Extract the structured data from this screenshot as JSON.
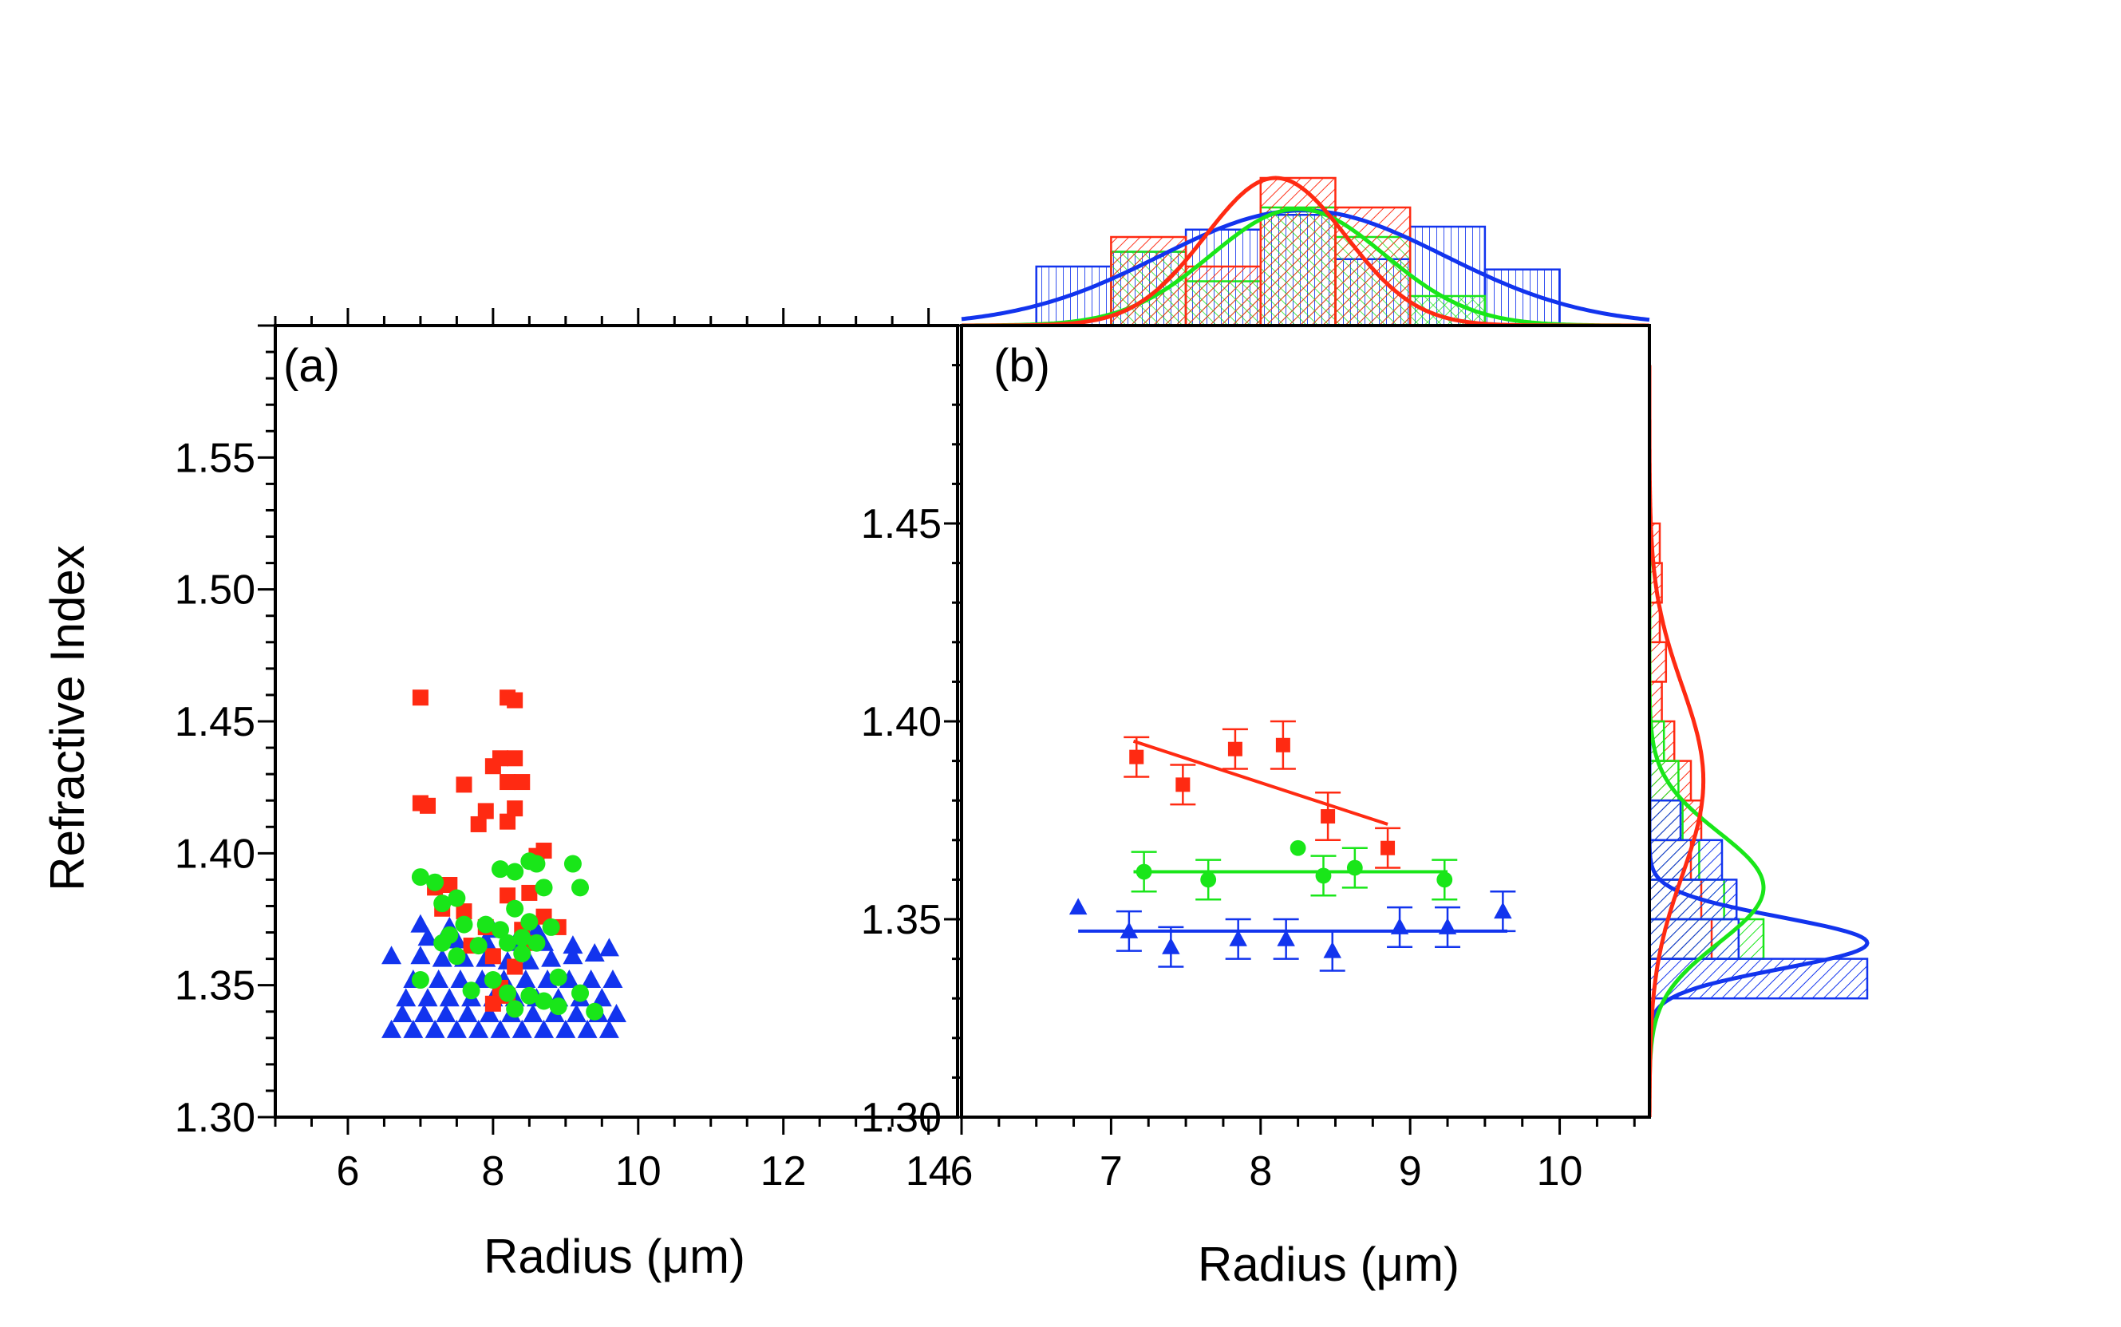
{
  "colors": {
    "red": "#ff2a12",
    "green": "#19e619",
    "blue": "#1234ee",
    "axis": "#000000",
    "background": "#ffffff"
  },
  "chart_data": [
    {
      "type": "scatter",
      "panel_label": "(a)",
      "xlabel": "Radius (μm)",
      "ylabel": "Refractive Index",
      "xlim": [
        5,
        14.4
      ],
      "ylim": [
        1.3,
        1.6
      ],
      "xticks": [
        "6",
        "8",
        "10",
        "12",
        "14"
      ],
      "yticks": [
        "1.30",
        "1.35",
        "1.40",
        "1.45",
        "1.50",
        "1.55"
      ],
      "series": [
        {
          "name": "red",
          "marker": "square",
          "color": "#ff2a12",
          "points": [
            [
              7.0,
              1.459
            ],
            [
              8.2,
              1.459
            ],
            [
              8.3,
              1.458
            ],
            [
              7.0,
              1.419
            ],
            [
              7.1,
              1.418
            ],
            [
              7.6,
              1.426
            ],
            [
              8.1,
              1.436
            ],
            [
              8.3,
              1.436
            ],
            [
              8.0,
              1.433
            ],
            [
              8.2,
              1.427
            ],
            [
              8.4,
              1.427
            ],
            [
              7.9,
              1.416
            ],
            [
              8.3,
              1.417
            ],
            [
              7.8,
              1.411
            ],
            [
              8.2,
              1.412
            ],
            [
              8.7,
              1.401
            ],
            [
              8.6,
              1.399
            ],
            [
              7.2,
              1.387
            ],
            [
              7.4,
              1.388
            ],
            [
              7.3,
              1.379
            ],
            [
              7.6,
              1.378
            ],
            [
              8.2,
              1.384
            ],
            [
              8.5,
              1.385
            ],
            [
              7.9,
              1.372
            ],
            [
              8.4,
              1.371
            ],
            [
              8.7,
              1.376
            ],
            [
              8.0,
              1.361
            ],
            [
              8.3,
              1.357
            ],
            [
              8.1,
              1.349
            ],
            [
              8.0,
              1.343
            ],
            [
              8.2,
              1.346
            ],
            [
              7.7,
              1.365
            ],
            [
              8.5,
              1.366
            ],
            [
              8.9,
              1.372
            ]
          ]
        },
        {
          "name": "green",
          "marker": "circle",
          "color": "#19e619",
          "points": [
            [
              7.0,
              1.391
            ],
            [
              7.2,
              1.389
            ],
            [
              7.3,
              1.381
            ],
            [
              7.5,
              1.383
            ],
            [
              7.4,
              1.369
            ],
            [
              7.6,
              1.373
            ],
            [
              7.3,
              1.366
            ],
            [
              7.5,
              1.361
            ],
            [
              7.9,
              1.373
            ],
            [
              8.1,
              1.371
            ],
            [
              8.3,
              1.379
            ],
            [
              8.5,
              1.374
            ],
            [
              8.2,
              1.366
            ],
            [
              8.4,
              1.362
            ],
            [
              8.1,
              1.394
            ],
            [
              8.3,
              1.393
            ],
            [
              8.5,
              1.397
            ],
            [
              8.6,
              1.396
            ],
            [
              9.1,
              1.396
            ],
            [
              9.2,
              1.387
            ],
            [
              8.7,
              1.387
            ],
            [
              8.8,
              1.372
            ],
            [
              8.6,
              1.366
            ],
            [
              8.4,
              1.368
            ],
            [
              7.8,
              1.365
            ],
            [
              8.0,
              1.352
            ],
            [
              8.2,
              1.347
            ],
            [
              8.5,
              1.346
            ],
            [
              7.0,
              1.352
            ],
            [
              9.2,
              1.347
            ],
            [
              8.9,
              1.342
            ],
            [
              9.4,
              1.34
            ],
            [
              7.7,
              1.348
            ],
            [
              8.9,
              1.353
            ],
            [
              8.3,
              1.341
            ],
            [
              8.7,
              1.344
            ]
          ]
        },
        {
          "name": "blue",
          "marker": "triangle",
          "color": "#1234ee",
          "points": [
            [
              6.6,
              1.333
            ],
            [
              6.9,
              1.333
            ],
            [
              7.2,
              1.333
            ],
            [
              7.5,
              1.333
            ],
            [
              7.8,
              1.333
            ],
            [
              8.1,
              1.333
            ],
            [
              8.4,
              1.333
            ],
            [
              8.7,
              1.333
            ],
            [
              9.0,
              1.333
            ],
            [
              9.3,
              1.333
            ],
            [
              9.6,
              1.333
            ],
            [
              6.75,
              1.339
            ],
            [
              7.05,
              1.339
            ],
            [
              7.35,
              1.339
            ],
            [
              7.65,
              1.339
            ],
            [
              7.95,
              1.339
            ],
            [
              8.25,
              1.339
            ],
            [
              8.55,
              1.339
            ],
            [
              8.85,
              1.339
            ],
            [
              9.15,
              1.339
            ],
            [
              9.45,
              1.339
            ],
            [
              9.7,
              1.339
            ],
            [
              6.8,
              1.345
            ],
            [
              7.1,
              1.345
            ],
            [
              7.4,
              1.345
            ],
            [
              7.7,
              1.345
            ],
            [
              8.0,
              1.345
            ],
            [
              8.3,
              1.345
            ],
            [
              8.6,
              1.345
            ],
            [
              8.9,
              1.345
            ],
            [
              9.2,
              1.345
            ],
            [
              9.5,
              1.345
            ],
            [
              6.9,
              1.352
            ],
            [
              7.25,
              1.352
            ],
            [
              7.55,
              1.352
            ],
            [
              7.85,
              1.352
            ],
            [
              8.15,
              1.352
            ],
            [
              8.45,
              1.352
            ],
            [
              8.75,
              1.352
            ],
            [
              9.05,
              1.352
            ],
            [
              9.35,
              1.352
            ],
            [
              9.65,
              1.352
            ],
            [
              6.6,
              1.361
            ],
            [
              7.0,
              1.361
            ],
            [
              7.3,
              1.36
            ],
            [
              7.6,
              1.36
            ],
            [
              7.9,
              1.36
            ],
            [
              8.2,
              1.359
            ],
            [
              8.5,
              1.359
            ],
            [
              8.8,
              1.36
            ],
            [
              9.1,
              1.361
            ],
            [
              9.4,
              1.362
            ],
            [
              7.1,
              1.368
            ],
            [
              7.5,
              1.367
            ],
            [
              7.9,
              1.367
            ],
            [
              8.3,
              1.366
            ],
            [
              8.7,
              1.366
            ],
            [
              9.1,
              1.365
            ],
            [
              9.6,
              1.364
            ],
            [
              7.0,
              1.373
            ],
            [
              7.4,
              1.372
            ],
            [
              8.0,
              1.371
            ],
            [
              8.6,
              1.371
            ]
          ]
        }
      ]
    },
    {
      "type": "scatter",
      "panel_label": "(b)",
      "xlabel": "Radius (μm)",
      "xlim": [
        6,
        10.6
      ],
      "ylim": [
        1.3,
        1.5
      ],
      "xticks": [
        "6",
        "7",
        "8",
        "9",
        "10"
      ],
      "yticks": [
        "1.30",
        "1.35",
        "1.40",
        "1.45"
      ],
      "series": [
        {
          "name": "red",
          "marker": "square",
          "color": "#ff2a12",
          "points": [
            [
              7.17,
              1.391,
              0.005
            ],
            [
              7.48,
              1.384,
              0.005
            ],
            [
              7.83,
              1.393,
              0.005
            ],
            [
              8.15,
              1.394,
              0.006
            ],
            [
              8.45,
              1.376,
              0.006
            ],
            [
              8.85,
              1.368,
              0.005
            ]
          ],
          "fit": [
            [
              7.15,
              1.395
            ],
            [
              8.85,
              1.374
            ]
          ]
        },
        {
          "name": "green",
          "marker": "circle",
          "color": "#19e619",
          "points": [
            [
              7.22,
              1.362,
              0.005
            ],
            [
              7.65,
              1.36,
              0.005
            ],
            [
              8.25,
              1.368,
              0
            ],
            [
              8.42,
              1.361,
              0.005
            ],
            [
              8.63,
              1.363,
              0.005
            ],
            [
              9.23,
              1.36,
              0.005
            ]
          ],
          "fit": [
            [
              7.15,
              1.362
            ],
            [
              9.25,
              1.362
            ]
          ]
        },
        {
          "name": "blue",
          "marker": "triangle",
          "color": "#1234ee",
          "points": [
            [
              6.78,
              1.353,
              0
            ],
            [
              7.12,
              1.347,
              0.005
            ],
            [
              7.4,
              1.343,
              0.005
            ],
            [
              7.85,
              1.345,
              0.005
            ],
            [
              8.17,
              1.345,
              0.005
            ],
            [
              8.48,
              1.342,
              0.005
            ],
            [
              8.93,
              1.348,
              0.005
            ],
            [
              9.25,
              1.348,
              0.005
            ],
            [
              9.62,
              1.352,
              0.005
            ]
          ],
          "fit": [
            [
              6.78,
              1.347
            ],
            [
              9.65,
              1.347
            ]
          ]
        }
      ]
    },
    {
      "type": "histogram",
      "orientation": "vertical",
      "axis": "Radius (μm)",
      "bins": [
        6.5,
        7.0,
        7.5,
        8.0,
        8.5,
        9.0,
        9.5,
        10.0
      ],
      "series": [
        {
          "name": "red",
          "color": "#ff2a12",
          "hatch": "diagonal",
          "counts": [
            0,
            6,
            4,
            10,
            8,
            0,
            0
          ],
          "fit_mean": 8.1,
          "fit_sigma": 0.47,
          "fit_peak": 10
        },
        {
          "name": "green",
          "color": "#19e619",
          "hatch": "crosshatch",
          "counts": [
            0,
            5,
            3,
            8,
            6,
            2,
            0
          ],
          "fit_mean": 8.25,
          "fit_sigma": 0.58,
          "fit_peak": 7.9
        },
        {
          "name": "blue",
          "color": "#1234ee",
          "hatch": "vertical",
          "counts": [
            4,
            5,
            6.5,
            7.5,
            4.5,
            6.7,
            3.8
          ],
          "fit_mean": 8.28,
          "fit_sigma": 0.95,
          "fit_peak": 7.8
        }
      ]
    },
    {
      "type": "histogram",
      "orientation": "horizontal",
      "axis": "Refractive Index",
      "bins": [
        1.33,
        1.34,
        1.35,
        1.36,
        1.37,
        1.38,
        1.39,
        1.4,
        1.41,
        1.42,
        1.43,
        1.44,
        1.45
      ],
      "series": [
        {
          "name": "red",
          "color": "#ff2a12",
          "counts": [
            0,
            3,
            2.5,
            2,
            2.5,
            2,
            1.2,
            0.6,
            0.8,
            0.5,
            0.6,
            0.5
          ],
          "fit_mean": 1.385,
          "fit_sigma": 0.024,
          "fit_peak": 2.6
        },
        {
          "name": "green",
          "color": "#19e619",
          "counts": [
            0,
            5.5,
            3.6,
            2.4,
            1.6,
            1.4,
            0.7,
            0,
            0,
            0,
            0,
            0
          ],
          "fit_mean": 1.358,
          "fit_sigma": 0.014,
          "fit_peak": 5.5
        },
        {
          "name": "blue",
          "color": "#1234ee",
          "counts": [
            10.5,
            4.3,
            4.2,
            3.5,
            1.5,
            0,
            0,
            0,
            0,
            0,
            0,
            0
          ],
          "fit_mean": 1.344,
          "fit_sigma": 0.0065,
          "fit_peak": 10.5
        }
      ]
    }
  ]
}
